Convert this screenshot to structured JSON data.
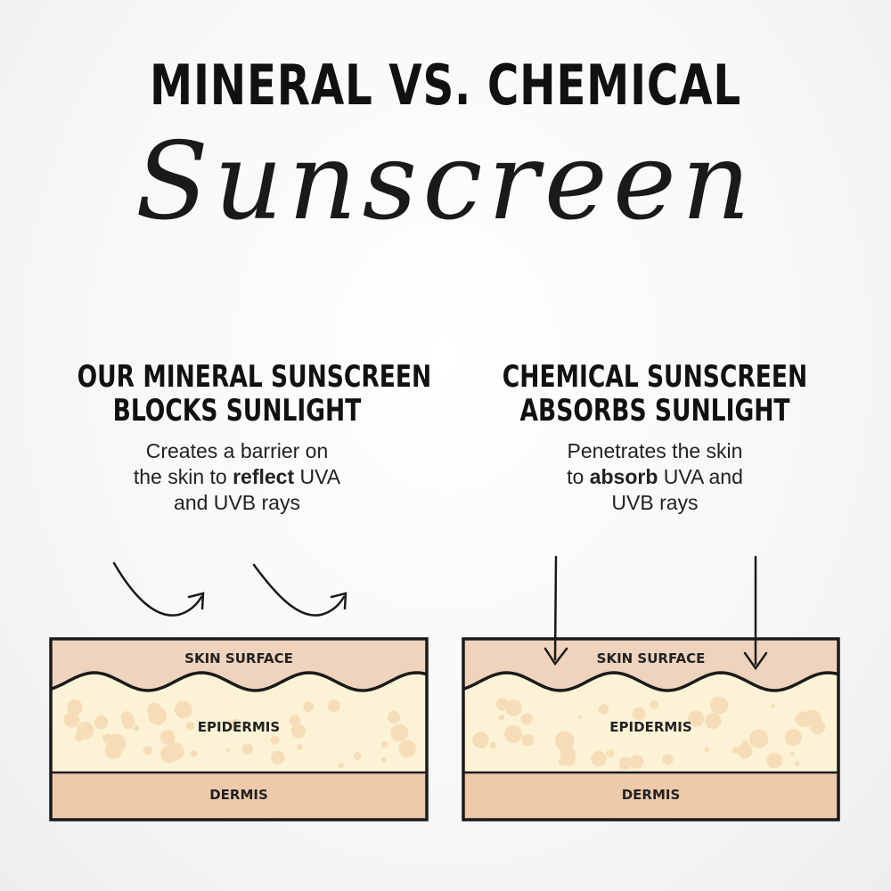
{
  "title": "MINERAL VS. CHEMICAL",
  "script_title": "Sunscreen",
  "left": {
    "heading_line1": "OUR MINERAL SUNSCREEN",
    "heading_line2": "BLOCKS SUNLIGHT",
    "desc_line1": "Creates a barrier on",
    "desc_pre": "the skin to ",
    "desc_bold": "reflect",
    "desc_post": " UVA",
    "desc_line3": "and UVB rays",
    "arrow_type": "reflected"
  },
  "right": {
    "heading_line1": "CHEMICAL SUNSCREEN",
    "heading_line2": "ABSORBS SUNLIGHT",
    "desc_line1": "Penetrates the skin",
    "desc_pre": "to ",
    "desc_bold": "absorb",
    "desc_post": " UVA and",
    "desc_line3": "UVB rays",
    "arrow_type": "penetrating"
  },
  "layers": {
    "surface": "SKIN SURFACE",
    "epidermis": "EPIDERMIS",
    "dermis": "DERMIS"
  },
  "colors": {
    "surface": "#efd3bd",
    "epidermis": "#fcf3d6",
    "dots": "#f6ddb8",
    "dermis": "#eecaaa",
    "outline": "#1a1a1a"
  }
}
